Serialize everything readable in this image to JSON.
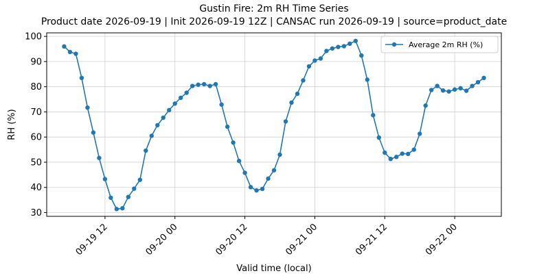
{
  "chart_data": {
    "type": "line",
    "title": "Gustin Fire: 2m RH Time Series",
    "subtitle": "Product date 2026-09-19 | Init 2026-09-19 12Z | CANSAC run 2026-09-19 | source=product_date",
    "x_label": "Valid time (local)",
    "y_label": "RH (%)",
    "x": [
      "09-19 05",
      "09-19 06",
      "09-19 07",
      "09-19 08",
      "09-19 09",
      "09-19 10",
      "09-19 11",
      "09-19 12",
      "09-19 13",
      "09-19 14",
      "09-19 15",
      "09-19 16",
      "09-19 17",
      "09-19 18",
      "09-19 19",
      "09-19 20",
      "09-19 21",
      "09-19 22",
      "09-19 23",
      "09-20 00",
      "09-20 01",
      "09-20 02",
      "09-20 03",
      "09-20 04",
      "09-20 05",
      "09-20 06",
      "09-20 07",
      "09-20 08",
      "09-20 09",
      "09-20 10",
      "09-20 11",
      "09-20 12",
      "09-20 13",
      "09-20 14",
      "09-20 15",
      "09-20 16",
      "09-20 17",
      "09-20 18",
      "09-20 19",
      "09-20 20",
      "09-20 21",
      "09-20 22",
      "09-20 23",
      "09-21 00",
      "09-21 01",
      "09-21 02",
      "09-21 03",
      "09-21 04",
      "09-21 05",
      "09-21 06",
      "09-21 07",
      "09-21 08",
      "09-21 09",
      "09-21 10",
      "09-21 11",
      "09-21 12",
      "09-21 13",
      "09-21 14",
      "09-21 15",
      "09-21 16",
      "09-21 17",
      "09-21 18",
      "09-21 19",
      "09-21 20",
      "09-21 21",
      "09-21 22",
      "09-21 23",
      "09-22 00",
      "09-22 01",
      "09-22 02",
      "09-22 03",
      "09-22 04",
      "09-22 05"
    ],
    "series": [
      {
        "name": "Average 2m RH (%)",
        "color": "#1f77b4",
        "values": [
          96,
          93.8,
          93.1,
          83.5,
          71.7,
          61.8,
          51.7,
          43.3,
          35.9,
          31.4,
          31.7,
          36.2,
          39.5,
          43,
          54.6,
          60.5,
          64.7,
          67.7,
          70.7,
          73.3,
          75.6,
          77.6,
          80.3,
          80.8,
          81,
          80.3,
          81,
          72.9,
          64.1,
          57.8,
          50.5,
          45.8,
          40.1,
          38.8,
          39.4,
          43.5,
          46.8,
          53,
          66.2,
          73.7,
          77.2,
          82.5,
          88.1,
          90.4,
          91.2,
          94.2,
          95.2,
          95.8,
          96.1,
          97.1,
          98.2,
          92.4,
          82.8,
          68.7,
          59.8,
          53.8,
          51.3,
          52.1,
          53.4,
          53.3,
          55,
          61.3,
          72.5,
          78.7,
          80.3,
          78.5,
          78.1,
          78.9,
          79.4,
          78.4,
          80.3,
          81.8,
          83.5
        ]
      }
    ],
    "xlim": [
      "09-19 02",
      "09-22 08"
    ],
    "xticks": [
      "09-19 12",
      "09-20 00",
      "09-20 12",
      "09-21 00",
      "09-21 12",
      "09-22 00"
    ],
    "ylim": [
      28.5,
      101.4
    ],
    "yticks": [
      30,
      40,
      50,
      60,
      70,
      80,
      90,
      100
    ],
    "grid": true,
    "legend": "upper right"
  }
}
